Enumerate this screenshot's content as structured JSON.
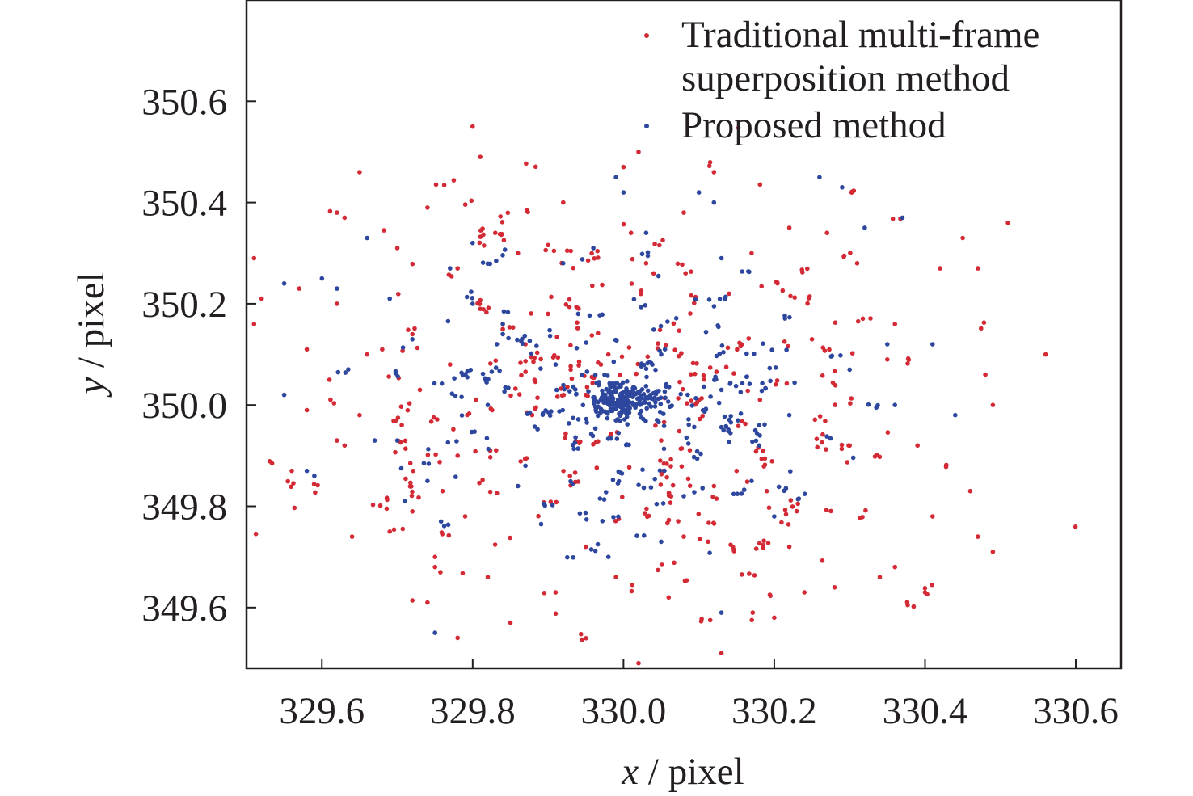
{
  "chart_data": {
    "type": "scatter",
    "title": "",
    "xlabel": {
      "var": "x",
      "unit": " / pixel"
    },
    "ylabel": {
      "var": "y",
      "unit": " / pixel"
    },
    "xlim": [
      329.5,
      330.66
    ],
    "ylim": [
      349.48,
      350.8
    ],
    "xticks": [
      329.6,
      329.8,
      330.0,
      330.2,
      330.4,
      330.6
    ],
    "xtick_labels": [
      "329.6",
      "329.8",
      "330.0",
      "330.2",
      "330.4",
      "330.6"
    ],
    "yticks": [
      349.6,
      349.8,
      350.0,
      350.2,
      350.4,
      350.6
    ],
    "ytick_labels": [
      "349.6",
      "349.8",
      "350.0",
      "350.2",
      "350.4",
      "350.6"
    ],
    "grid": false,
    "legend_position": "top-right",
    "series": [
      {
        "name": "Traditional multi-frame superposition method",
        "legend_lines": [
          "Traditional multi-frame",
          "superposition method"
        ],
        "color": "#d42a35",
        "approx_count": 540,
        "x": [
          329.8,
          329.81,
          329.65,
          329.62,
          329.63,
          329.51,
          329.52,
          329.51,
          329.57,
          329.58,
          329.62,
          329.61,
          329.58,
          329.56,
          329.63,
          329.64,
          329.69,
          329.72,
          329.74,
          329.78,
          329.82,
          329.79,
          329.75,
          329.75,
          329.76,
          329.78,
          329.85,
          329.91,
          329.95,
          329.99,
          330.02,
          330.06,
          330.13,
          330.2,
          330.24,
          330.28,
          330.34,
          330.4,
          330.36,
          330.47,
          330.51,
          330.56,
          330.45,
          330.47,
          330.49,
          330.49,
          330.46,
          330.41,
          330.39,
          330.35,
          330.3,
          330.22,
          330.19,
          330.15,
          330.12,
          330.08,
          330.05,
          330.01,
          330.02,
          330.0,
          329.98,
          329.95,
          329.9,
          329.86,
          329.81,
          329.77,
          329.72,
          329.68,
          329.65,
          329.62,
          329.66,
          329.7,
          329.74,
          329.78,
          329.83,
          329.87,
          329.92,
          329.97,
          330.03,
          330.08,
          330.12,
          330.17,
          330.22,
          330.27,
          330.31,
          330.36,
          330.42,
          330.48,
          330.25,
          330.14,
          330.04,
          329.93,
          329.84,
          329.73
        ],
        "y": [
          350.55,
          350.49,
          350.46,
          350.38,
          350.37,
          350.29,
          350.21,
          350.16,
          350.23,
          350.11,
          350.2,
          350.05,
          349.99,
          349.87,
          349.92,
          349.74,
          349.75,
          349.79,
          349.61,
          349.54,
          349.66,
          349.78,
          349.7,
          349.68,
          349.83,
          349.9,
          349.57,
          349.63,
          349.72,
          349.66,
          349.49,
          349.62,
          349.51,
          349.58,
          349.63,
          349.64,
          349.66,
          349.63,
          349.68,
          349.74,
          350.36,
          350.1,
          350.33,
          350.27,
          350.0,
          349.71,
          349.83,
          349.78,
          349.92,
          350.09,
          349.92,
          349.72,
          349.83,
          349.87,
          349.84,
          349.74,
          349.93,
          350.34,
          350.5,
          350.47,
          350.1,
          350.02,
          350.18,
          350.3,
          350.19,
          350.08,
          350.14,
          350.11,
          349.98,
          349.93,
          350.1,
          350.31,
          350.39,
          350.27,
          350.34,
          350.12,
          350.4,
          350.08,
          350.28,
          350.38,
          350.46,
          350.3,
          350.35,
          350.34,
          350.28,
          350.16,
          350.27,
          350.06,
          350.13,
          350.22,
          350.26,
          350.07,
          350.15,
          350.03
        ]
      },
      {
        "name": "Proposed method",
        "legend_lines": [
          "Proposed method"
        ],
        "color": "#2e479e",
        "approx_count": 560,
        "x": [
          329.55,
          329.55,
          329.58,
          329.59,
          329.66,
          329.67,
          329.71,
          329.69,
          329.72,
          329.74,
          329.77,
          329.8,
          329.8,
          329.84,
          329.86,
          329.87,
          329.92,
          329.94,
          329.99,
          330.0,
          330.03,
          330.05,
          330.1,
          330.12,
          330.13,
          330.13,
          330.17,
          330.2,
          330.26,
          330.29,
          330.32,
          330.35,
          330.37,
          330.41,
          330.44,
          330.36,
          330.3,
          330.22,
          330.18,
          330.13,
          330.08,
          330.05,
          329.98,
          329.96,
          329.91,
          329.82,
          329.75,
          329.7,
          329.6,
          329.62
        ],
        "y": [
          350.24,
          350.02,
          349.87,
          349.86,
          350.33,
          349.93,
          349.81,
          350.21,
          350.13,
          349.85,
          350.27,
          350.32,
          350.2,
          350.16,
          349.84,
          349.88,
          350.28,
          350.18,
          350.45,
          350.42,
          350.34,
          350.1,
          350.42,
          350.4,
          350.29,
          349.59,
          349.85,
          349.78,
          350.45,
          350.43,
          350.35,
          350.12,
          350.37,
          350.12,
          349.98,
          350.0,
          350.07,
          349.98,
          349.92,
          350.03,
          349.82,
          349.73,
          349.7,
          350.31,
          350.08,
          350.0,
          349.55,
          349.93,
          350.25,
          350.23
        ]
      }
    ],
    "dense_cluster": {
      "center": [
        330.0,
        350.01
      ],
      "spread": [
        0.025,
        0.018
      ],
      "color": "#2e479e"
    }
  }
}
